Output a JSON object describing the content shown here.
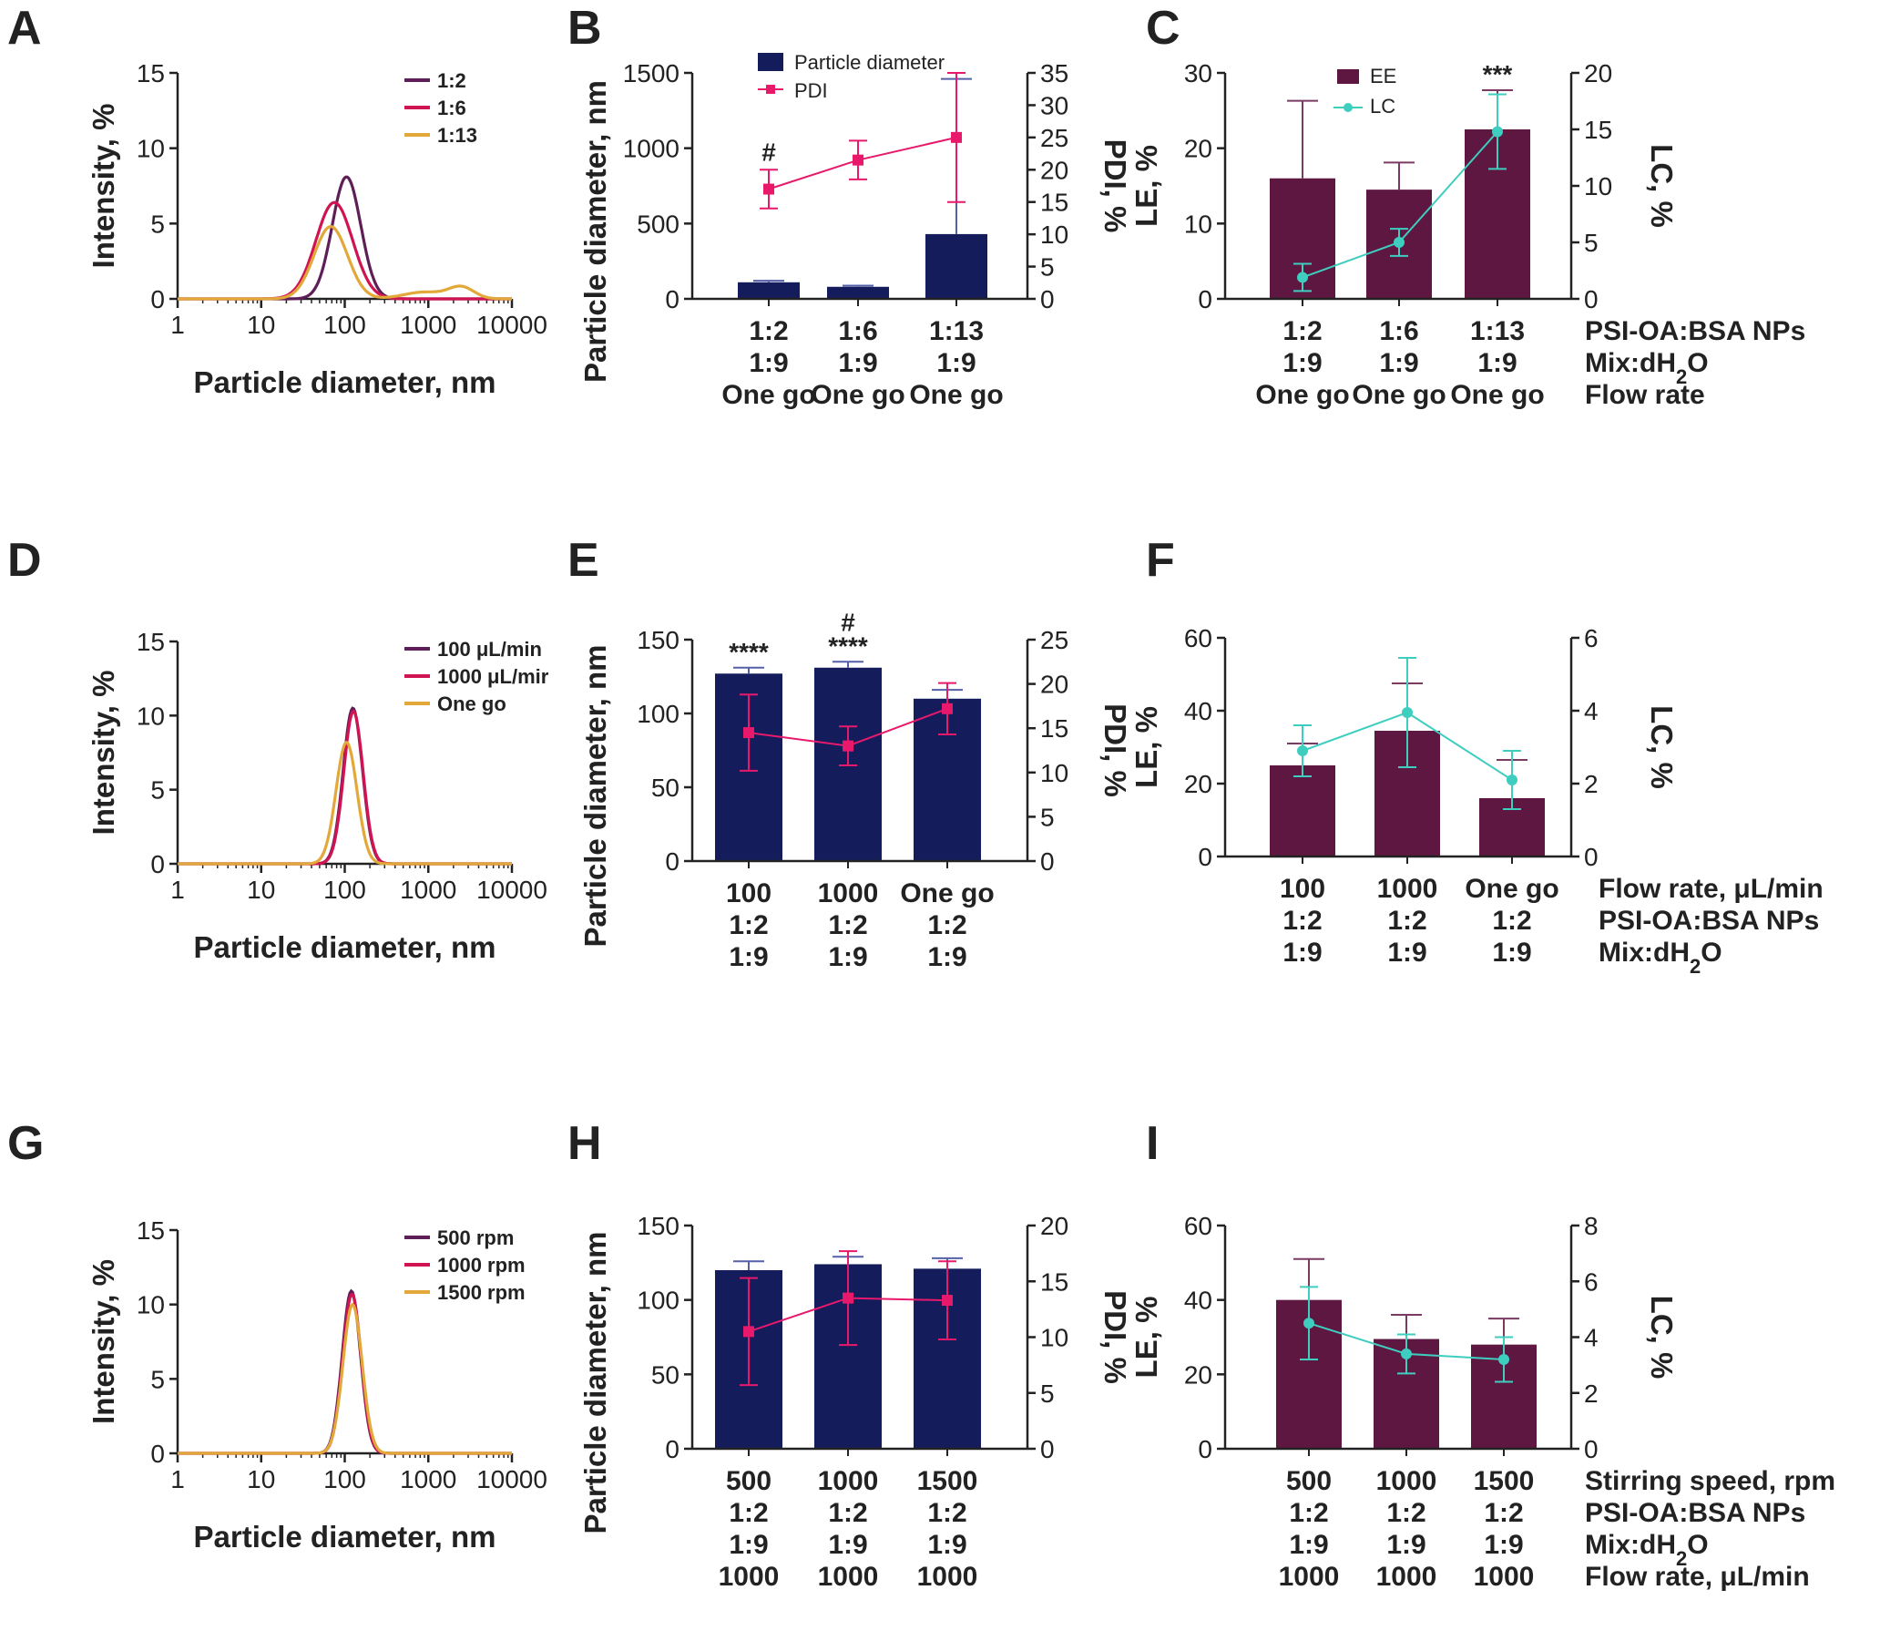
{
  "colors": {
    "navy": "#141C5C",
    "maroon": "#5E1740",
    "pink": "#E8196B",
    "teal": "#3ECEC0",
    "purple": "#5E1E57",
    "crimson": "#D01452",
    "gold": "#E2A93A"
  },
  "chart_data": [
    {
      "id": "A",
      "panel_label": "A",
      "type": "line",
      "xscale": "log",
      "xlabel": "Particle diameter, nm",
      "ylabel": "Intensity, %",
      "xlim": [
        1,
        10000
      ],
      "ylim": [
        0,
        15
      ],
      "xticks": [
        "1",
        "10",
        "100",
        "1000",
        "10000"
      ],
      "yticks": [
        "0",
        "5",
        "10",
        "15"
      ],
      "legend": {
        "position": "top-right"
      },
      "series": [
        {
          "name": "1:2",
          "color": "#5E1E57",
          "peaks": [
            {
              "center": 105,
              "height": 8.1,
              "sigma": 0.17
            }
          ]
        },
        {
          "name": "1:6",
          "color": "#D01452",
          "peaks": [
            {
              "center": 75,
              "height": 6.4,
              "sigma": 0.22
            }
          ]
        },
        {
          "name": "1:13",
          "color": "#E2A93A",
          "peaks": [
            {
              "center": 68,
              "height": 4.8,
              "sigma": 0.2
            },
            {
              "center": 900,
              "height": 0.45,
              "sigma": 0.25
            },
            {
              "center": 2500,
              "height": 0.75,
              "sigma": 0.15
            }
          ]
        }
      ]
    },
    {
      "id": "B",
      "panel_label": "B",
      "type": "bar+line",
      "left_color": "#141C5C",
      "right_color": "#E8196B",
      "ylabel": "Particle diameter, nm",
      "y2label": "PDI, %",
      "ylim": [
        0,
        1500
      ],
      "y2lim": [
        0,
        35
      ],
      "yticks": [
        "0",
        "500",
        "1000",
        "1500"
      ],
      "y2ticks": [
        "0",
        "5",
        "10",
        "15",
        "20",
        "25",
        "30",
        "35"
      ],
      "bar_series": {
        "name": "Particle diameter",
        "values": [
          110,
          80,
          430
        ],
        "err": [
          10,
          8,
          1030
        ]
      },
      "line_series": {
        "name": "PDI",
        "values": [
          17,
          21.5,
          25
        ],
        "err": [
          3,
          3,
          10
        ]
      },
      "legend": {
        "position": "top-left"
      },
      "annotations": [
        {
          "index": 0,
          "text": "#"
        }
      ],
      "category_rows": [
        [
          "1:2",
          "1:6",
          "1:13"
        ],
        [
          "1:9",
          "1:9",
          "1:9"
        ],
        [
          "One go",
          "One go",
          "One go"
        ]
      ],
      "row_labels": []
    },
    {
      "id": "C",
      "panel_label": "C",
      "type": "bar+line",
      "left_color": "#5E1740",
      "right_color": "#3ECEC0",
      "ylabel": "LE, %",
      "y2label": "LC, %",
      "ylim": [
        0,
        30
      ],
      "y2lim": [
        0,
        20
      ],
      "yticks": [
        "0",
        "10",
        "20",
        "30"
      ],
      "y2ticks": [
        "0",
        "5",
        "10",
        "15",
        "20"
      ],
      "bar_series": {
        "name": "EE",
        "values": [
          16,
          14.5,
          22.5
        ],
        "err": [
          10.3,
          3.6,
          5.2
        ]
      },
      "line_series": {
        "name": "LC",
        "values": [
          1.9,
          5,
          14.8
        ],
        "err": [
          1.2,
          1.2,
          3.3
        ]
      },
      "legend": {
        "position": "top-left"
      },
      "annotations": [
        {
          "index": 2,
          "text": "***"
        }
      ],
      "category_rows": [
        [
          "1:2",
          "1:6",
          "1:13"
        ],
        [
          "1:9",
          "1:9",
          "1:9"
        ],
        [
          "One go",
          "One go",
          "One go"
        ]
      ],
      "row_labels": [
        "PSI-OA:BSA NPs",
        "Mix:dH₂O",
        "Flow rate"
      ]
    },
    {
      "id": "D",
      "panel_label": "D",
      "type": "line",
      "xscale": "log",
      "xlabel": "Particle diameter, nm",
      "ylabel": "Intensity, %",
      "xlim": [
        1,
        10000
      ],
      "ylim": [
        0,
        15
      ],
      "xticks": [
        "1",
        "10",
        "100",
        "1000",
        "10000"
      ],
      "yticks": [
        "0",
        "5",
        "10",
        "15"
      ],
      "legend": {
        "position": "top-right"
      },
      "series": [
        {
          "name": "100 μL/min",
          "color": "#5E1E57",
          "peaks": [
            {
              "center": 125,
              "height": 10.5,
              "sigma": 0.115
            }
          ]
        },
        {
          "name": "1000 μL/mir",
          "color": "#D01452",
          "peaks": [
            {
              "center": 127,
              "height": 10.3,
              "sigma": 0.115
            }
          ]
        },
        {
          "name": "One go",
          "color": "#E2A93A",
          "peaks": [
            {
              "center": 105,
              "height": 8.2,
              "sigma": 0.125
            }
          ]
        }
      ]
    },
    {
      "id": "E",
      "panel_label": "E",
      "type": "bar+line",
      "left_color": "#141C5C",
      "right_color": "#E8196B",
      "ylabel": "Particle diameter, nm",
      "y2label": "PDI, %",
      "ylim": [
        0,
        150
      ],
      "y2lim": [
        0,
        25
      ],
      "yticks": [
        "0",
        "50",
        "100",
        "150"
      ],
      "y2ticks": [
        "0",
        "5",
        "10",
        "15",
        "20",
        "25"
      ],
      "bar_series": {
        "name": "Particle diameter",
        "values": [
          127,
          131,
          110
        ],
        "err": [
          4,
          4,
          6
        ]
      },
      "line_series": {
        "name": "PDI",
        "values": [
          14.5,
          13,
          17.2
        ],
        "err": [
          4.3,
          2.2,
          2.9
        ]
      },
      "annotations": [
        {
          "index": 0,
          "text": "****"
        },
        {
          "index": 1,
          "text": "****"
        },
        {
          "index": 1,
          "text": "#"
        }
      ],
      "category_rows": [
        [
          "100",
          "1000",
          "One go"
        ],
        [
          "1:2",
          "1:2",
          "1:2"
        ],
        [
          "1:9",
          "1:9",
          "1:9"
        ]
      ],
      "row_labels": []
    },
    {
      "id": "F",
      "panel_label": "F",
      "type": "bar+line",
      "left_color": "#5E1740",
      "right_color": "#3ECEC0",
      "ylabel": "LE, %",
      "y2label": "LC, %",
      "ylim": [
        0,
        60
      ],
      "y2lim": [
        0,
        6
      ],
      "yticks": [
        "0",
        "20",
        "40",
        "60"
      ],
      "y2ticks": [
        "0",
        "2",
        "4",
        "6"
      ],
      "bar_series": {
        "name": "EE",
        "values": [
          25,
          34.5,
          16
        ],
        "err": [
          6,
          13,
          10.5
        ]
      },
      "line_series": {
        "name": "LC",
        "values": [
          2.9,
          3.95,
          2.1
        ],
        "err": [
          0.7,
          1.5,
          0.8
        ]
      },
      "annotations": [],
      "category_rows": [
        [
          "100",
          "1000",
          "One go"
        ],
        [
          "1:2",
          "1:2",
          "1:2"
        ],
        [
          "1:9",
          "1:9",
          "1:9"
        ]
      ],
      "row_labels": [
        "Flow rate, μL/min",
        "PSI-OA:BSA NPs",
        "Mix:dH₂O"
      ]
    },
    {
      "id": "G",
      "panel_label": "G",
      "type": "line",
      "xscale": "log",
      "xlabel": "Particle diameter, nm",
      "ylabel": "Intensity, %",
      "xlim": [
        1,
        10000
      ],
      "ylim": [
        0,
        15
      ],
      "xticks": [
        "1",
        "10",
        "100",
        "1000",
        "10000"
      ],
      "yticks": [
        "0",
        "5",
        "10",
        "15"
      ],
      "legend": {
        "position": "top-right"
      },
      "series": [
        {
          "name": "500 rpm",
          "color": "#5E1E57",
          "peaks": [
            {
              "center": 120,
              "height": 10.9,
              "sigma": 0.11
            }
          ]
        },
        {
          "name": "1000 rpm",
          "color": "#D01452",
          "peaks": [
            {
              "center": 122,
              "height": 10.7,
              "sigma": 0.11
            }
          ]
        },
        {
          "name": "1500 rpm",
          "color": "#E2A93A",
          "peaks": [
            {
              "center": 124,
              "height": 10.0,
              "sigma": 0.115
            }
          ]
        }
      ]
    },
    {
      "id": "H",
      "panel_label": "H",
      "type": "bar+line",
      "left_color": "#141C5C",
      "right_color": "#E8196B",
      "ylabel": "Particle diameter, nm",
      "y2label": "PDI, %",
      "ylim": [
        0,
        150
      ],
      "y2lim": [
        0,
        20
      ],
      "yticks": [
        "0",
        "50",
        "100",
        "150"
      ],
      "y2ticks": [
        "0",
        "5",
        "10",
        "15",
        "20"
      ],
      "bar_series": {
        "name": "Particle diameter",
        "values": [
          120,
          124,
          121
        ],
        "err": [
          6,
          5,
          7
        ]
      },
      "line_series": {
        "name": "PDI",
        "values": [
          10.5,
          13.5,
          13.3
        ],
        "err": [
          4.8,
          4.2,
          3.5
        ]
      },
      "annotations": [],
      "category_rows": [
        [
          "500",
          "1000",
          "1500"
        ],
        [
          "1:2",
          "1:2",
          "1:2"
        ],
        [
          "1:9",
          "1:9",
          "1:9"
        ],
        [
          "1000",
          "1000",
          "1000"
        ]
      ],
      "row_labels": []
    },
    {
      "id": "I",
      "panel_label": "I",
      "type": "bar+line",
      "left_color": "#5E1740",
      "right_color": "#3ECEC0",
      "ylabel": "LE, %",
      "y2label": "LC, %",
      "ylim": [
        0,
        60
      ],
      "y2lim": [
        0,
        8
      ],
      "yticks": [
        "0",
        "20",
        "40",
        "60"
      ],
      "y2ticks": [
        "0",
        "2",
        "4",
        "6",
        "8"
      ],
      "bar_series": {
        "name": "EE",
        "values": [
          40,
          29.5,
          28
        ],
        "err": [
          11,
          6.5,
          7
        ]
      },
      "line_series": {
        "name": "LC",
        "values": [
          4.5,
          3.4,
          3.2
        ],
        "err": [
          1.3,
          0.7,
          0.8
        ]
      },
      "annotations": [],
      "category_rows": [
        [
          "500",
          "1000",
          "1500"
        ],
        [
          "1:2",
          "1:2",
          "1:2"
        ],
        [
          "1:9",
          "1:9",
          "1:9"
        ],
        [
          "1000",
          "1000",
          "1000"
        ]
      ],
      "row_labels": [
        "Stirring speed, rpm",
        "PSI-OA:BSA NPs",
        "Mix:dH₂O",
        "Flow rate, μL/min"
      ]
    }
  ]
}
